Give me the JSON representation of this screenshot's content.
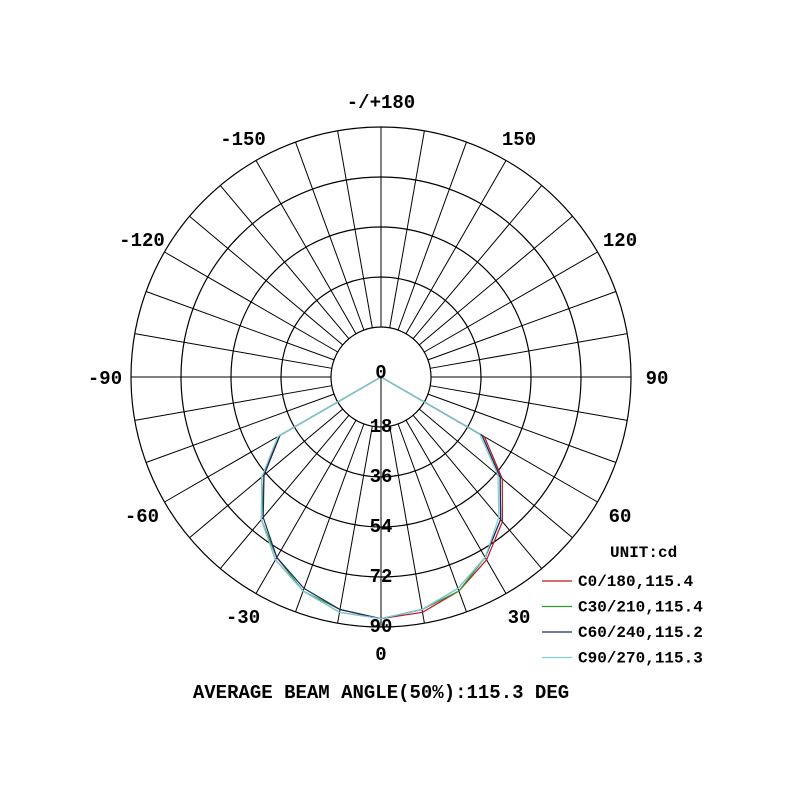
{
  "chart_data": {
    "type": "polar",
    "angle_labels": [
      {
        "angle": 180,
        "text": "-/+180"
      },
      {
        "angle": 150,
        "text": "150"
      },
      {
        "angle": 120,
        "text": "120"
      },
      {
        "angle": 90,
        "text": "90"
      },
      {
        "angle": 60,
        "text": "60"
      },
      {
        "angle": 30,
        "text": "30"
      },
      {
        "angle": 0,
        "text": "0"
      },
      {
        "angle": -30,
        "text": "-30"
      },
      {
        "angle": -60,
        "text": "-60"
      },
      {
        "angle": -90,
        "text": "-90"
      },
      {
        "angle": -120,
        "text": "-120"
      },
      {
        "angle": -150,
        "text": "-150"
      }
    ],
    "radial_ticks": [
      0,
      18,
      36,
      54,
      72,
      90
    ],
    "rlim": [
      0,
      90
    ],
    "grid": true,
    "angle_grid_step_deg": 10,
    "unit_label": "UNIT:cd",
    "legend_position": "bottom-right",
    "angles": [
      -90,
      -80,
      -70,
      -60,
      -50,
      -40,
      -30,
      -20,
      -10,
      0,
      10,
      20,
      30,
      40,
      50,
      60,
      70,
      80,
      90
    ],
    "series": [
      {
        "name": "C0/180,115.4",
        "color": "#c0141c",
        "values": [
          0,
          0,
          0,
          42,
          56,
          67,
          76,
          82,
          86,
          87,
          86,
          82,
          76,
          68,
          57,
          43,
          0,
          0,
          0
        ]
      },
      {
        "name": "C30/210,115.4",
        "color": "#2e9e2e",
        "values": [
          0,
          0,
          0,
          42,
          55,
          67,
          75,
          82,
          85,
          87,
          85,
          82,
          75,
          67,
          56,
          42,
          0,
          0,
          0
        ]
      },
      {
        "name": "C60/240,115.2",
        "color": "#1a2a6c",
        "values": [
          0,
          0,
          0,
          42,
          55,
          66,
          75,
          81,
          85,
          87,
          85,
          81,
          75,
          67,
          56,
          42,
          0,
          0,
          0
        ]
      },
      {
        "name": "C90/270,115.3",
        "color": "#7fd0d6",
        "values": [
          0,
          0,
          0,
          43,
          56,
          67,
          76,
          82,
          86,
          87,
          85,
          81,
          75,
          66,
          55,
          41,
          0,
          0,
          0
        ]
      }
    ],
    "footer": "AVERAGE BEAM ANGLE(50%):115.3 DEG"
  }
}
